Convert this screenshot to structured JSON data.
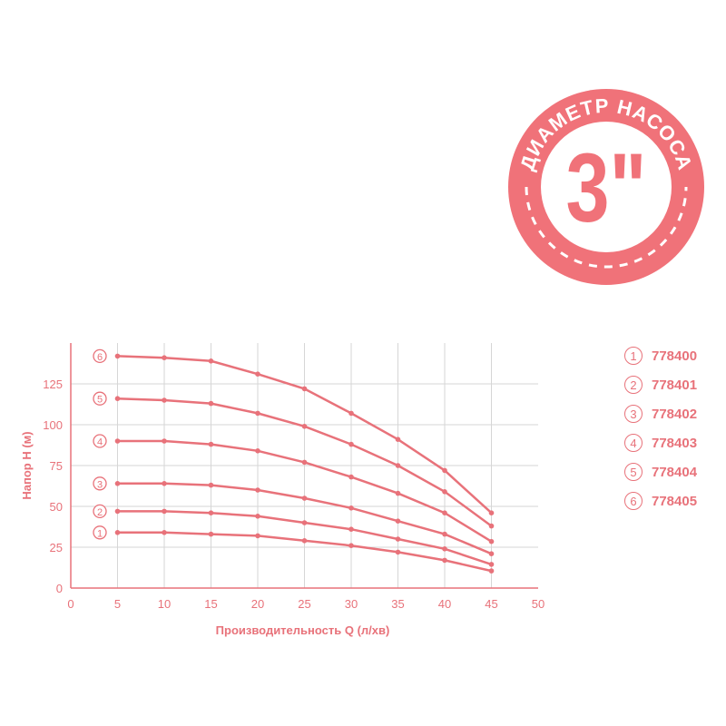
{
  "badge": {
    "arc_text": "ДИАМЕТР НАСОСА",
    "center_text": "3\"",
    "color": "#f07279"
  },
  "legend": [
    {
      "num": "1",
      "label": "778400"
    },
    {
      "num": "2",
      "label": "778401"
    },
    {
      "num": "3",
      "label": "778402"
    },
    {
      "num": "4",
      "label": "778403"
    },
    {
      "num": "5",
      "label": "778404"
    },
    {
      "num": "6",
      "label": "778405"
    }
  ],
  "chart_data": {
    "type": "line",
    "title": "",
    "xlabel": "Производительность Q (л/хв)",
    "ylabel": "Напор H (м)",
    "xlim": [
      0,
      50
    ],
    "ylim": [
      0,
      150
    ],
    "xticks": [
      0,
      5,
      10,
      15,
      20,
      25,
      30,
      35,
      40,
      45,
      50
    ],
    "yticks": [
      0,
      25,
      50,
      75,
      100,
      125
    ],
    "grid": true,
    "legend_position": "right",
    "color": "#e8727a",
    "x": [
      5,
      10,
      15,
      20,
      25,
      30,
      35,
      40,
      45
    ],
    "series": [
      {
        "name": "1",
        "values": [
          34,
          34,
          33,
          32,
          29,
          26,
          22,
          17,
          10.5
        ]
      },
      {
        "name": "2",
        "values": [
          47,
          47,
          46,
          44,
          40,
          36,
          30,
          24,
          14.5
        ]
      },
      {
        "name": "3",
        "values": [
          64,
          64,
          63,
          60,
          55,
          49,
          41,
          33,
          21
        ]
      },
      {
        "name": "4",
        "values": [
          90,
          90,
          88,
          84,
          77,
          68,
          58,
          46,
          28.5
        ]
      },
      {
        "name": "5",
        "values": [
          116,
          115,
          113,
          107,
          99,
          88,
          75,
          59,
          38
        ]
      },
      {
        "name": "6",
        "values": [
          142,
          141,
          139,
          131,
          122,
          107,
          91,
          72,
          46
        ]
      }
    ]
  }
}
